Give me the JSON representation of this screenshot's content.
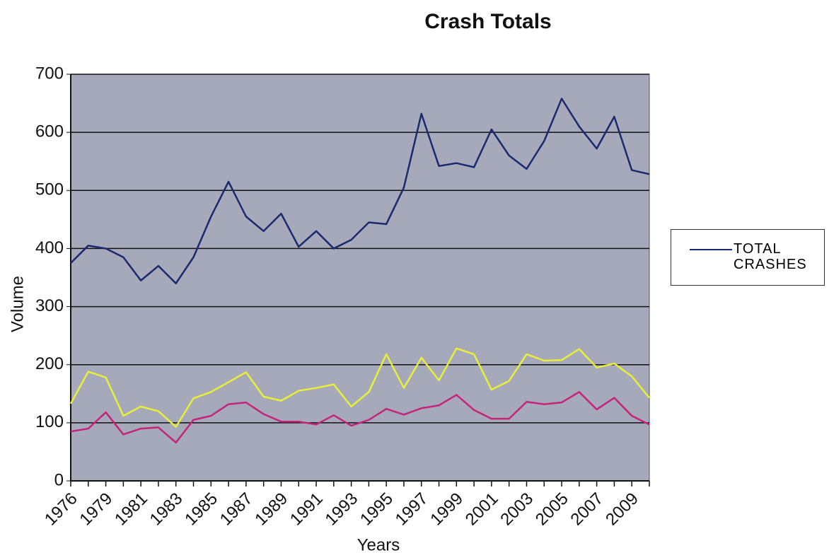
{
  "chart_data": {
    "type": "line",
    "title": "Crash Totals",
    "x_label": "Years",
    "y_label": "Volume",
    "categories": [
      "1976",
      null,
      "1979",
      null,
      "1981",
      null,
      "1983",
      null,
      "1985",
      null,
      "1987",
      null,
      "1989",
      null,
      "1991",
      null,
      "1993",
      null,
      "1995",
      null,
      "1997",
      null,
      "1999",
      null,
      "2001",
      null,
      "2003",
      null,
      "2005",
      null,
      "2007",
      null,
      "2009",
      null
    ],
    "series": [
      {
        "name": "TOTAL CRASHES",
        "color": "#1a2a6e",
        "values": [
          375,
          405,
          400,
          385,
          345,
          370,
          340,
          385,
          455,
          515,
          455,
          430,
          460,
          403,
          430,
          400,
          415,
          445,
          442,
          505,
          632,
          542,
          547,
          540,
          605,
          560,
          537,
          585,
          658,
          610,
          572,
          627,
          535,
          528
        ]
      },
      {
        "color": "#e8ef3a",
        "values": [
          133,
          188,
          178,
          112,
          128,
          120,
          93,
          142,
          153,
          170,
          187,
          145,
          138,
          155,
          160,
          166,
          128,
          153,
          218,
          160,
          212,
          173,
          228,
          218,
          157,
          172,
          218,
          207,
          208,
          227,
          195,
          202,
          180,
          143
        ]
      },
      {
        "color": "#c4247a",
        "values": [
          85,
          90,
          118,
          80,
          90,
          92,
          66,
          105,
          112,
          132,
          135,
          115,
          102,
          102,
          97,
          113,
          95,
          105,
          124,
          114,
          125,
          130,
          148,
          122,
          107,
          107,
          136,
          132,
          135,
          153,
          123,
          143,
          112,
          97
        ]
      }
    ],
    "ylim": [
      0,
      700
    ],
    "yticks": [
      0,
      100,
      200,
      300,
      400,
      500,
      600,
      700
    ],
    "grid": true,
    "plot_color": "#a5a9b9",
    "legend": "right"
  }
}
